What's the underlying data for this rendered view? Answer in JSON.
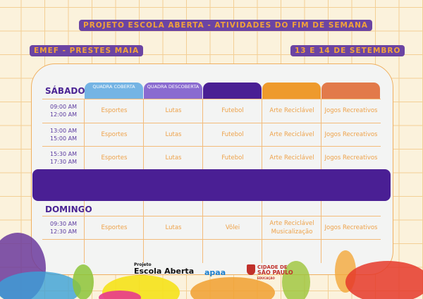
{
  "title": "PROJETO ESCOLA ABERTA - ATIVIDADES DO FIM DE SEMANA",
  "school": "EMEF - PRESTES MAIA",
  "dates": "13 E 14 DE SETEMBRO",
  "columns": [
    {
      "label": "QUADRA COBERTA",
      "color": "#74b4e4"
    },
    {
      "label": "QUADRA DESCOBERTA",
      "color": "#8a6bd0"
    },
    {
      "label": "",
      "color": "#4a1f94"
    },
    {
      "label": "",
      "color": "#ee9a2c"
    },
    {
      "label": "",
      "color": "#e27a4a"
    }
  ],
  "saturday": {
    "label": "SÁBADO",
    "rows": [
      {
        "start": "09:00 AM",
        "end": "12:00 AM",
        "cells": [
          "Esportes",
          "Lutas",
          "Futebol",
          "Arte Reciclável",
          "Jogos Recreativos"
        ]
      },
      {
        "start": "13:00 AM",
        "end": "15:00 AM",
        "cells": [
          "Esportes",
          "Lutas",
          "Futebol",
          "Arte Reciclável",
          "Jogos Recreativos"
        ]
      },
      {
        "start": "15:30 AM",
        "end": "17:30 AM",
        "cells": [
          "Esportes",
          "Lutas",
          "Futebol",
          "Arte Reciclável",
          "Jogos Recreativos"
        ]
      }
    ]
  },
  "sunday": {
    "label": "DOMINGO",
    "rows": [
      {
        "start": "09:30 AM",
        "end": "12:30 AM",
        "cells": [
          "Esportes",
          "Lutas",
          "Vôlei",
          "Arte Reciclável\nMusicalização",
          "Jogos Recreativos"
        ]
      }
    ]
  },
  "logos": {
    "projeto": "Projeto",
    "escola": "Escola Aberta",
    "apaa": "apaa",
    "cidade": "CIDADE DE",
    "sp": "SÃO PAULO",
    "educacao": "EDUCAÇÃO"
  }
}
